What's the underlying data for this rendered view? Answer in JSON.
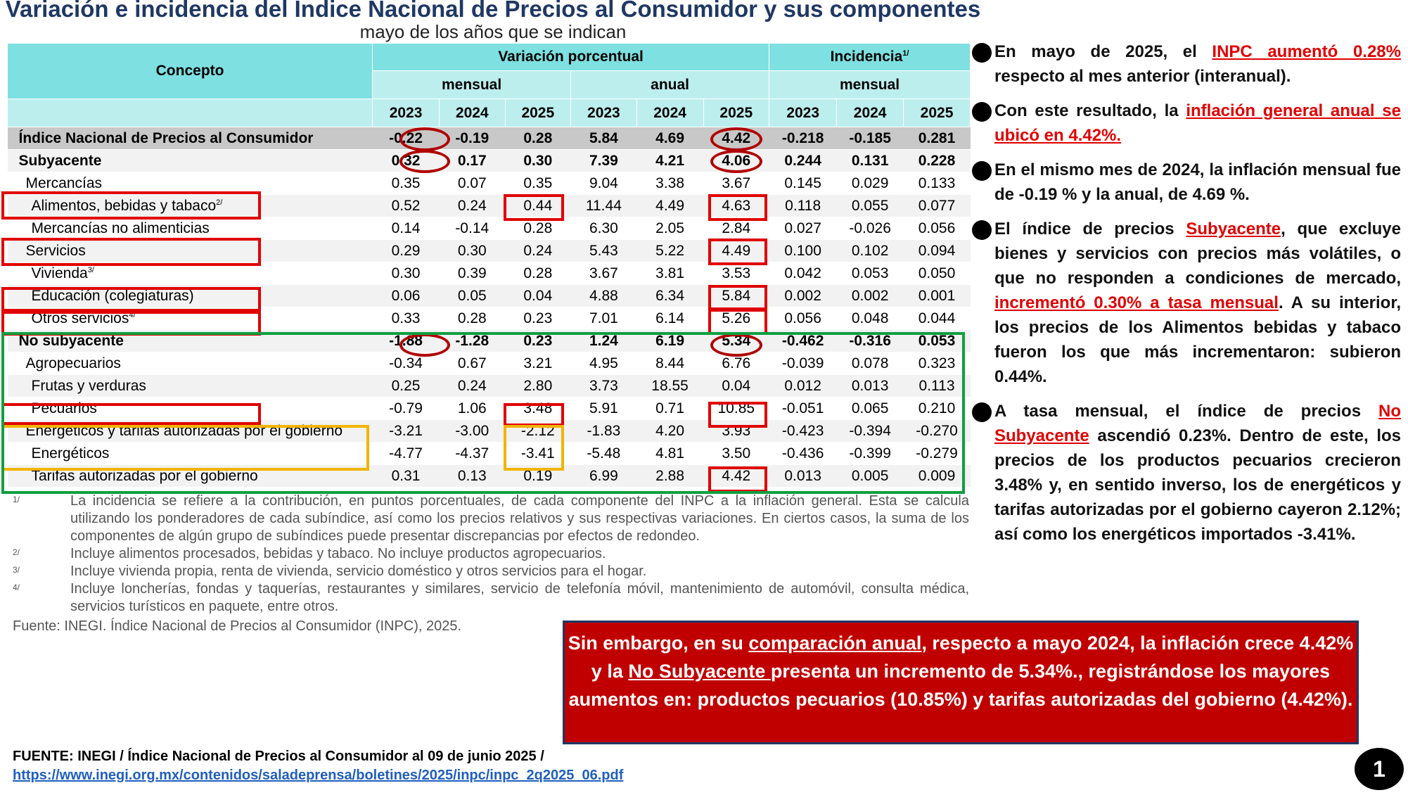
{
  "title": "Variación e incidencia del Índice Nacional de Precios al Consumidor y sus componentes",
  "subtitle": "mayo de los años que se indican",
  "table": {
    "concept_header": "Concepto",
    "group1": "Variación porcentual",
    "group2": "Incidencia",
    "group2_sup": "1/",
    "sub_mensual": "mensual",
    "sub_anual": "anual",
    "sub_mensual2": "mensual",
    "years": [
      "2023",
      "2024",
      "2025",
      "2023",
      "2024",
      "2025",
      "2023",
      "2024",
      "2025"
    ],
    "rows": [
      {
        "label": "Índice Nacional de Precios al Consumidor",
        "sup": "",
        "values": [
          "-0.22",
          "-0.19",
          "0.28",
          "5.84",
          "4.69",
          "4.42",
          "-0.218",
          "-0.185",
          "0.281"
        ]
      },
      {
        "label": "Subyacente",
        "sup": "",
        "values": [
          "0.32",
          "0.17",
          "0.30",
          "7.39",
          "4.21",
          "4.06",
          "0.244",
          "0.131",
          "0.228"
        ]
      },
      {
        "label": "Mercancías",
        "sup": "",
        "values": [
          "0.35",
          "0.07",
          "0.35",
          "9.04",
          "3.38",
          "3.67",
          "0.145",
          "0.029",
          "0.133"
        ]
      },
      {
        "label": "Alimentos, bebidas y tabaco",
        "sup": "2/",
        "values": [
          "0.52",
          "0.24",
          "0.44",
          "11.44",
          "4.49",
          "4.63",
          "0.118",
          "0.055",
          "0.077"
        ]
      },
      {
        "label": "Mercancías no alimenticias",
        "sup": "",
        "values": [
          "0.14",
          "-0.14",
          "0.28",
          "6.30",
          "2.05",
          "2.84",
          "0.027",
          "-0.026",
          "0.056"
        ]
      },
      {
        "label": "Servicios",
        "sup": "",
        "values": [
          "0.29",
          "0.30",
          "0.24",
          "5.43",
          "5.22",
          "4.49",
          "0.100",
          "0.102",
          "0.094"
        ]
      },
      {
        "label": "Vivienda",
        "sup": "3/",
        "values": [
          "0.30",
          "0.39",
          "0.28",
          "3.67",
          "3.81",
          "3.53",
          "0.042",
          "0.053",
          "0.050"
        ]
      },
      {
        "label": "Educación (colegiaturas)",
        "sup": "",
        "values": [
          "0.06",
          "0.05",
          "0.04",
          "4.88",
          "6.34",
          "5.84",
          "0.002",
          "0.002",
          "0.001"
        ]
      },
      {
        "label": "Otros servicios",
        "sup": "4/",
        "values": [
          "0.33",
          "0.28",
          "0.23",
          "7.01",
          "6.14",
          "5.26",
          "0.056",
          "0.048",
          "0.044"
        ]
      },
      {
        "label": "No subyacente",
        "sup": "",
        "values": [
          "-1.88",
          "-1.28",
          "0.23",
          "1.24",
          "6.19",
          "5.34",
          "-0.462",
          "-0.316",
          "0.053"
        ]
      },
      {
        "label": "Agropecuarios",
        "sup": "",
        "values": [
          "-0.34",
          "0.67",
          "3.21",
          "4.95",
          "8.44",
          "6.76",
          "-0.039",
          "0.078",
          "0.323"
        ]
      },
      {
        "label": "Frutas y verduras",
        "sup": "",
        "values": [
          "0.25",
          "0.24",
          "2.80",
          "3.73",
          "18.55",
          "0.04",
          "0.012",
          "0.013",
          "0.113"
        ]
      },
      {
        "label": "Pecuarios",
        "sup": "",
        "values": [
          "-0.79",
          "1.06",
          "3.48",
          "5.91",
          "0.71",
          "10.85",
          "-0.051",
          "0.065",
          "0.210"
        ]
      },
      {
        "label": "Energéticos y tarifas autorizadas por el gobierno",
        "sup": "",
        "values": [
          "-3.21",
          "-3.00",
          "-2.12",
          "-1.83",
          "4.20",
          "3.93",
          "-0.423",
          "-0.394",
          "-0.270"
        ]
      },
      {
        "label": "Energéticos",
        "sup": "",
        "values": [
          "-4.77",
          "-4.37",
          "-3.41",
          "-5.48",
          "4.81",
          "3.50",
          "-0.436",
          "-0.399",
          "-0.279"
        ]
      },
      {
        "label": "Tarifas autorizadas por el gobierno",
        "sup": "",
        "values": [
          "0.31",
          "0.13",
          "0.19",
          "6.99",
          "2.88",
          "4.42",
          "0.013",
          "0.005",
          "0.009"
        ]
      }
    ]
  },
  "notes": [
    {
      "mark": "1/",
      "text": "La incidencia se refiere a la contribución, en puntos porcentuales, de cada componente del INPC a la inflación general. Esta se calcula utilizando los ponderadores de cada subíndice, así como los precios relativos y sus respectivas variaciones. En ciertos casos, la suma de los componentes de algún grupo de subíndices puede presentar discrepancias por efectos de redondeo."
    },
    {
      "mark": "2/",
      "text": "Incluye alimentos procesados, bebidas y tabaco. No incluye productos agropecuarios."
    },
    {
      "mark": "3/",
      "text": "Incluye vivienda propia, renta de vivienda, servicio doméstico y otros servicios para el hogar."
    },
    {
      "mark": "4/",
      "text": "Incluye loncherías, fondas y taquerías, restaurantes y similares, servicio de telefonía móvil, mantenimiento de automóvil, consulta médica, servicios turísticos en paquete, entre otros."
    }
  ],
  "source_small": "Fuente: INEGI. Índice Nacional de Precios al Consumidor (INPC), 2025.",
  "bullets": [
    {
      "a": "En mayo de 2025, el ",
      "red": "INPC aumentó 0.28%",
      "b": " respecto al mes anterior (interanual)."
    },
    {
      "a": "Con este resultado, la ",
      "red": "inflación general anual se ubicó en 4.42%.",
      "b": ""
    },
    {
      "a": "En el mismo mes de 2024, la inflación mensual fue de -0.19 % y la anual, de 4.69 %.",
      "red": "",
      "b": ""
    },
    {
      "a": "El índice de precios ",
      "red": "Subyacente",
      "b": ", que excluye bienes y servicios con precios más volátiles, o que no responden a condiciones de mercado, ",
      "red2": "incrementó 0.30% a tasa mensual",
      "c": ". A su interior, los precios de los Alimentos bebidas y tabaco fueron los que más incrementaron: subieron 0.44%."
    },
    {
      "a": "A tasa mensual, el índice de precios ",
      "red": "No Subyacente",
      "b": " ascendió 0.23%. Dentro de este, los precios de los productos pecuarios crecieron 3.48% y, en sentido inverso, los de energéticos y tarifas autorizadas por el gobierno cayeron 2.12%; así como los energéticos importados -3.41%."
    }
  ],
  "callout": {
    "p1": "Sin embargo, en su ",
    "u1": "comparación anual",
    "p2": ", respecto a mayo 2024, la inflación crece 4.42% y la ",
    "u2": "No Subyacente ",
    "p3": "presenta un incremento de 5.34%., registrándose los mayores aumentos en: productos pecuarios (10.85%) y tarifas autorizadas del gobierno (4.42%)."
  },
  "fuente": "FUENTE: INEGI / Índice Nacional de Precios al Consumidor al 09 de junio 2025 /",
  "fuente_url": "https://www.inegi.org.mx/contenidos/saladeprensa/boletines/2025/inpc/inpc_2q2025_06.pdf",
  "page_number": "1",
  "colors": {
    "header": "#7ee0e0",
    "highlight_red": "#e00000",
    "highlight_green": "#10a040",
    "highlight_orange": "#f2b400",
    "callout_bg": "#c00000",
    "title": "#1f3864"
  }
}
